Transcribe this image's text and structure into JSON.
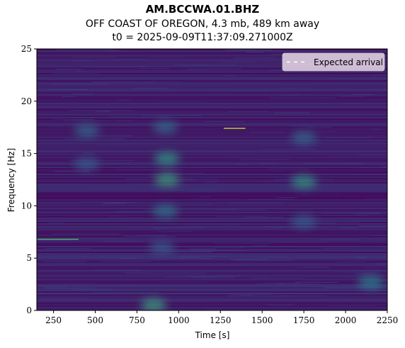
{
  "chart_data": {
    "type": "heatmap",
    "title": "AM.BCCWA.01.BHZ",
    "subtitle_lines": [
      "OFF COAST OF OREGON, 4.3 mb, 489 km away",
      "t0 = 2025-09-09T11:37:09.271000Z"
    ],
    "xlabel": "Time [s]",
    "ylabel": "Frequency [Hz]",
    "xlim": [
      150,
      2250
    ],
    "ylim": [
      0,
      25
    ],
    "xticks": [
      250,
      500,
      750,
      1000,
      1250,
      1500,
      1750,
      2000,
      2250
    ],
    "yticks": [
      0,
      5,
      10,
      15,
      20,
      25
    ],
    "colormap": "viridis",
    "grid": false,
    "legend": {
      "placement": "top-right",
      "entries": [
        {
          "label": "Expected arrival",
          "style": "dashed",
          "color": "#ffffff"
        }
      ]
    },
    "energy_patches": [
      {
        "time": 450,
        "freq": 17.2,
        "intensity": 0.35
      },
      {
        "time": 450,
        "freq": 14.0,
        "intensity": 0.3
      },
      {
        "time": 930,
        "freq": 14.5,
        "intensity": 0.55
      },
      {
        "time": 930,
        "freq": 12.5,
        "intensity": 0.6
      },
      {
        "time": 920,
        "freq": 17.5,
        "intensity": 0.35
      },
      {
        "time": 920,
        "freq": 9.5,
        "intensity": 0.4
      },
      {
        "time": 900,
        "freq": 6.0,
        "intensity": 0.3
      },
      {
        "time": 1750,
        "freq": 12.3,
        "intensity": 0.55
      },
      {
        "time": 1750,
        "freq": 16.5,
        "intensity": 0.35
      },
      {
        "time": 1750,
        "freq": 8.5,
        "intensity": 0.3
      },
      {
        "time": 850,
        "freq": 0.5,
        "intensity": 0.6
      },
      {
        "time": 2150,
        "freq": 2.7,
        "intensity": 0.45
      }
    ],
    "narrowband_lines": [
      {
        "t_start": 150,
        "t_end": 400,
        "freq": 6.8,
        "intensity": 0.7
      },
      {
        "t_start": 1270,
        "t_end": 1400,
        "freq": 17.4,
        "intensity": 0.9
      },
      {
        "t_start": 150,
        "t_end": 2250,
        "freq": 18.7,
        "intensity": 0.15
      },
      {
        "t_start": 150,
        "t_end": 2250,
        "freq": 1.6,
        "intensity": 0.2
      }
    ]
  }
}
